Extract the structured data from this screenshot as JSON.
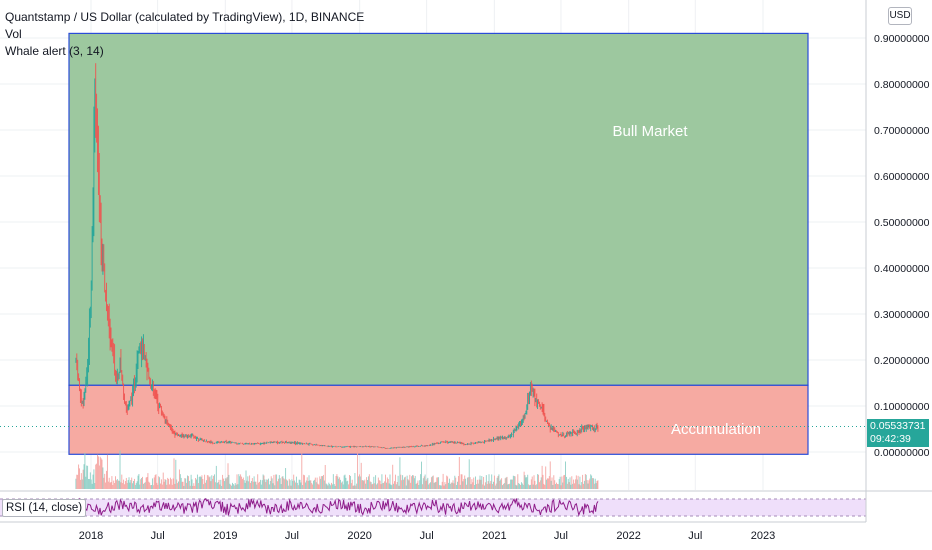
{
  "header": {
    "title": "Quantstamp / US Dollar (calculated by TradingView), 1D, BINANCE",
    "vol_label": "Vol",
    "whale_label": "Whale alert (3, 14)",
    "currency_button": "USD"
  },
  "rsi": {
    "label": "RSI (14, close)"
  },
  "current_price": {
    "value": "0.05533731",
    "countdown": "09:42:39"
  },
  "zones": [
    {
      "label": "Bull Market",
      "y_from": 0.145,
      "y_to": 0.91,
      "color": "#98c59a",
      "border": "#2a4cd8"
    },
    {
      "label": "Accumulation",
      "y_from": -0.005,
      "y_to": 0.145,
      "color": "#f5a59d",
      "border": "#2a4cd8"
    }
  ],
  "colors": {
    "up": "#26a69a",
    "down": "#ef5350",
    "rsi_line": "#8e1c8a",
    "rsi_band": "#efdffa",
    "grid": "#eef0f3"
  },
  "chart_data": {
    "type": "line",
    "title": "Quantstamp / US Dollar (calculated by TradingView), 1D, BINANCE",
    "xlabel": "",
    "ylabel": "",
    "ylim": [
      -0.02,
      0.93
    ],
    "y_ticks": [
      "0.90000000",
      "0.80000000",
      "0.70000000",
      "0.60000000",
      "0.50000000",
      "0.40000000",
      "0.30000000",
      "0.20000000",
      "0.10000000",
      "0.00000000"
    ],
    "y_tick_values": [
      0.9,
      0.8,
      0.7,
      0.6,
      0.5,
      0.4,
      0.3,
      0.2,
      0.1,
      0.0
    ],
    "x_ticks": [
      {
        "label": "2018",
        "date": "2018-01-01"
      },
      {
        "label": "Jul",
        "date": "2018-07-01"
      },
      {
        "label": "2019",
        "date": "2019-01-01"
      },
      {
        "label": "Jul",
        "date": "2019-07-01"
      },
      {
        "label": "2020",
        "date": "2020-01-01"
      },
      {
        "label": "Jul",
        "date": "2020-07-01"
      },
      {
        "label": "2021",
        "date": "2021-01-01"
      },
      {
        "label": "Jul",
        "date": "2021-07-01"
      },
      {
        "label": "2022",
        "date": "2022-01-01"
      },
      {
        "label": "Jul",
        "date": "2022-07-01"
      },
      {
        "label": "2023",
        "date": "2023-01-01"
      }
    ],
    "x_range": [
      "2017-11-10",
      "2023-06-10"
    ],
    "series": [
      {
        "x": [
          "2017-11-21",
          "2017-12-01",
          "2017-12-10",
          "2017-12-20",
          "2017-12-28",
          "2018-01-03",
          "2018-01-07",
          "2018-01-12",
          "2018-01-18",
          "2018-01-25",
          "2018-02-01",
          "2018-02-06",
          "2018-02-12",
          "2018-02-20",
          "2018-03-01",
          "2018-03-10",
          "2018-03-20",
          "2018-04-01",
          "2018-04-10",
          "2018-04-22",
          "2018-05-01",
          "2018-05-10",
          "2018-05-20",
          "2018-06-01",
          "2018-06-15",
          "2018-07-01",
          "2018-07-20",
          "2018-08-10",
          "2018-09-01",
          "2018-10-01",
          "2018-11-01",
          "2018-12-01",
          "2019-01-01",
          "2019-02-15",
          "2019-04-01",
          "2019-05-15",
          "2019-07-01",
          "2019-08-15",
          "2019-10-01",
          "2019-11-15",
          "2020-01-01",
          "2020-02-15",
          "2020-03-15",
          "2020-04-15",
          "2020-06-01",
          "2020-07-15",
          "2020-08-15",
          "2020-09-15",
          "2020-10-15",
          "2020-11-15",
          "2020-12-15",
          "2021-01-15",
          "2021-02-15",
          "2021-03-10",
          "2021-03-25",
          "2021-04-10",
          "2021-04-25",
          "2021-05-12",
          "2021-05-25",
          "2021-06-15",
          "2021-07-01",
          "2021-07-20",
          "2021-08-10",
          "2021-08-25",
          "2021-09-10",
          "2021-09-25",
          "2021-10-10"
        ],
        "y": [
          0.2,
          0.13,
          0.1,
          0.16,
          0.28,
          0.42,
          0.6,
          0.8,
          0.62,
          0.52,
          0.42,
          0.36,
          0.3,
          0.25,
          0.22,
          0.16,
          0.19,
          0.12,
          0.09,
          0.12,
          0.16,
          0.24,
          0.22,
          0.18,
          0.14,
          0.11,
          0.07,
          0.045,
          0.035,
          0.035,
          0.025,
          0.02,
          0.022,
          0.018,
          0.018,
          0.022,
          0.02,
          0.017,
          0.013,
          0.011,
          0.012,
          0.011,
          0.008,
          0.01,
          0.012,
          0.016,
          0.022,
          0.02,
          0.017,
          0.02,
          0.024,
          0.03,
          0.035,
          0.06,
          0.08,
          0.14,
          0.105,
          0.09,
          0.06,
          0.045,
          0.035,
          0.04,
          0.042,
          0.05,
          0.055,
          0.052,
          0.056
        ]
      }
    ]
  }
}
